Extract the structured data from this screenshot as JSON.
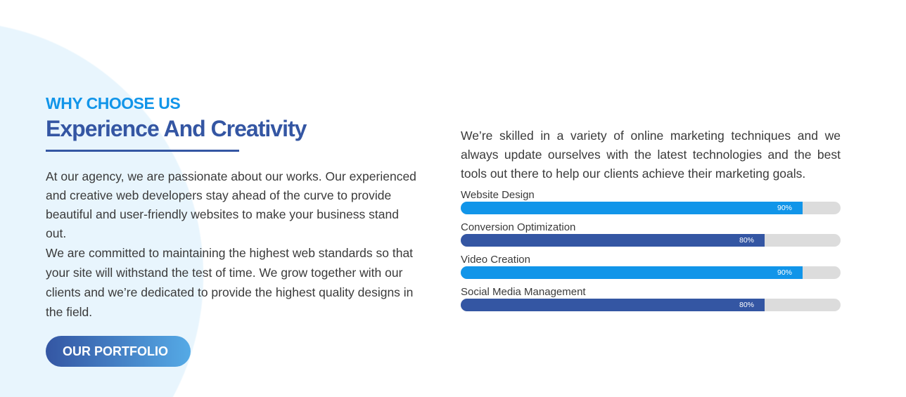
{
  "left": {
    "eyebrow": "WHY CHOOSE US",
    "title": "Experience And Creativity",
    "paragraph1": "At our agency, we are passionate about our works. Our experienced and creative web developers stay ahead of the curve to provide beautiful and user-friendly websites to make your business stand out.",
    "paragraph2": "We are committed to maintaining the highest web standards so that your site will withstand the test of time. We grow together with our clients and we’re dedicated to provide the highest quality designs in the field.",
    "button_label": "OUR PORTFOLIO"
  },
  "right": {
    "intro": "We’re skilled in a variety of online marketing techniques and we always update ourselves with the latest technologies and the best tools out there to help our clients achieve their marketing goals.",
    "skills": [
      {
        "label": "Website Design",
        "percent": 90,
        "percent_label": "90%",
        "color": "#1195e9"
      },
      {
        "label": "Conversion Optimization",
        "percent": 80,
        "percent_label": "80%",
        "color": "#3456a3"
      },
      {
        "label": "Video Creation",
        "percent": 90,
        "percent_label": "90%",
        "color": "#1195e9"
      },
      {
        "label": "Social Media Management",
        "percent": 80,
        "percent_label": "80%",
        "color": "#3456a3"
      }
    ]
  }
}
